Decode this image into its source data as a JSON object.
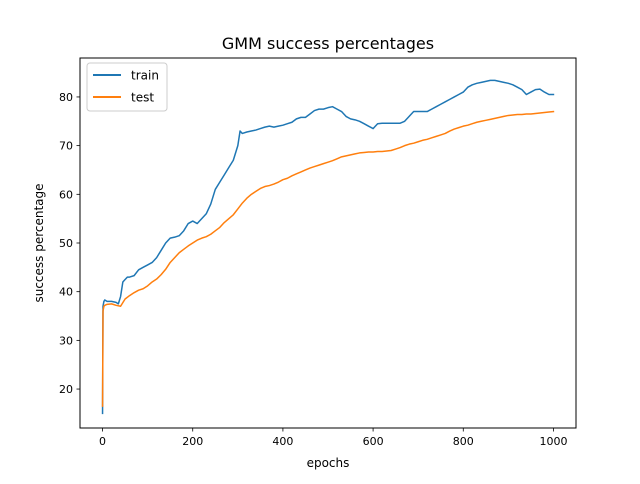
{
  "chart_data": {
    "type": "line",
    "title": "GMM success percentages",
    "xlabel": "epochs",
    "ylabel": "success percentage",
    "xlim": [
      -50,
      1050
    ],
    "ylim": [
      12,
      88
    ],
    "xticks": [
      0,
      200,
      400,
      600,
      800,
      1000
    ],
    "yticks": [
      20,
      30,
      40,
      50,
      60,
      70,
      80
    ],
    "grid": false,
    "legend": {
      "position": "top-left"
    },
    "series": [
      {
        "name": "train",
        "color": "#1f77b4",
        "x": [
          0,
          1,
          3,
          5,
          10,
          20,
          30,
          35,
          40,
          45,
          50,
          55,
          60,
          70,
          80,
          90,
          100,
          110,
          120,
          130,
          140,
          150,
          160,
          170,
          180,
          190,
          200,
          210,
          220,
          230,
          240,
          250,
          260,
          270,
          280,
          290,
          300,
          305,
          310,
          320,
          330,
          340,
          350,
          360,
          370,
          380,
          390,
          400,
          410,
          420,
          430,
          440,
          450,
          460,
          470,
          480,
          490,
          500,
          510,
          520,
          530,
          540,
          550,
          560,
          570,
          580,
          590,
          600,
          610,
          620,
          630,
          640,
          650,
          660,
          670,
          680,
          690,
          700,
          710,
          720,
          730,
          740,
          750,
          760,
          770,
          780,
          790,
          800,
          810,
          820,
          830,
          840,
          850,
          860,
          870,
          880,
          890,
          900,
          910,
          920,
          930,
          940,
          950,
          960,
          970,
          980,
          990,
          1000
        ],
        "y": [
          15,
          37,
          38,
          38.3,
          38,
          38,
          37.8,
          37.5,
          39,
          42,
          42.5,
          43,
          43,
          43.3,
          44.5,
          45,
          45.5,
          46,
          47,
          48.5,
          50,
          51,
          51.2,
          51.5,
          52.5,
          54,
          54.5,
          54,
          55,
          56,
          58,
          61,
          62.5,
          64,
          65.5,
          67,
          70,
          73,
          72.5,
          72.8,
          73,
          73.2,
          73.5,
          73.8,
          74,
          73.8,
          74,
          74.2,
          74.5,
          74.8,
          75.5,
          75.8,
          75.8,
          76.5,
          77.2,
          77.5,
          77.5,
          77.8,
          78,
          77.5,
          77,
          76,
          75.5,
          75.3,
          75,
          74.5,
          74,
          73.5,
          74.5,
          74.6,
          74.6,
          74.6,
          74.6,
          74.6,
          75,
          76,
          77,
          77,
          77,
          77,
          77.5,
          78,
          78.5,
          79,
          79.5,
          80,
          80.5,
          81,
          82,
          82.5,
          82.8,
          83,
          83.2,
          83.4,
          83.4,
          83.2,
          83,
          82.8,
          82.5,
          82,
          81.5,
          80.5,
          81,
          81.5,
          81.6,
          81,
          80.5,
          80.5
        ]
      },
      {
        "name": "test",
        "color": "#ff7f0e",
        "x": [
          0,
          1,
          3,
          5,
          10,
          20,
          30,
          40,
          50,
          60,
          70,
          80,
          90,
          100,
          110,
          120,
          130,
          140,
          150,
          160,
          170,
          180,
          190,
          200,
          210,
          220,
          230,
          240,
          250,
          260,
          270,
          280,
          290,
          300,
          310,
          320,
          330,
          340,
          350,
          360,
          370,
          380,
          390,
          400,
          410,
          420,
          430,
          440,
          450,
          460,
          470,
          480,
          490,
          500,
          510,
          520,
          530,
          540,
          550,
          560,
          570,
          580,
          590,
          600,
          610,
          620,
          630,
          640,
          650,
          660,
          670,
          680,
          690,
          700,
          710,
          720,
          730,
          740,
          750,
          760,
          770,
          780,
          790,
          800,
          810,
          820,
          830,
          840,
          850,
          860,
          870,
          880,
          890,
          900,
          910,
          920,
          930,
          940,
          950,
          960,
          970,
          980,
          990,
          1000
        ],
        "y": [
          16.5,
          36,
          37,
          37.2,
          37.4,
          37.5,
          37.2,
          37,
          38.5,
          39.2,
          39.8,
          40.3,
          40.6,
          41.2,
          42,
          42.6,
          43.5,
          44.6,
          46,
          47,
          48,
          48.7,
          49.4,
          50,
          50.6,
          51,
          51.3,
          51.8,
          52.5,
          53.2,
          54.2,
          55,
          55.8,
          57,
          58.2,
          59.2,
          60,
          60.6,
          61.2,
          61.6,
          61.8,
          62.1,
          62.5,
          63,
          63.3,
          63.8,
          64.2,
          64.6,
          65,
          65.4,
          65.7,
          66,
          66.3,
          66.6,
          66.9,
          67.3,
          67.7,
          67.9,
          68.1,
          68.3,
          68.5,
          68.6,
          68.7,
          68.7,
          68.8,
          68.8,
          68.9,
          69,
          69.3,
          69.6,
          70,
          70.3,
          70.5,
          70.8,
          71.1,
          71.3,
          71.6,
          71.9,
          72.2,
          72.5,
          73,
          73.4,
          73.7,
          74,
          74.2,
          74.5,
          74.8,
          75,
          75.2,
          75.4,
          75.6,
          75.8,
          76,
          76.2,
          76.3,
          76.4,
          76.4,
          76.5,
          76.5,
          76.6,
          76.7,
          76.8,
          76.9,
          77
        ]
      }
    ]
  }
}
